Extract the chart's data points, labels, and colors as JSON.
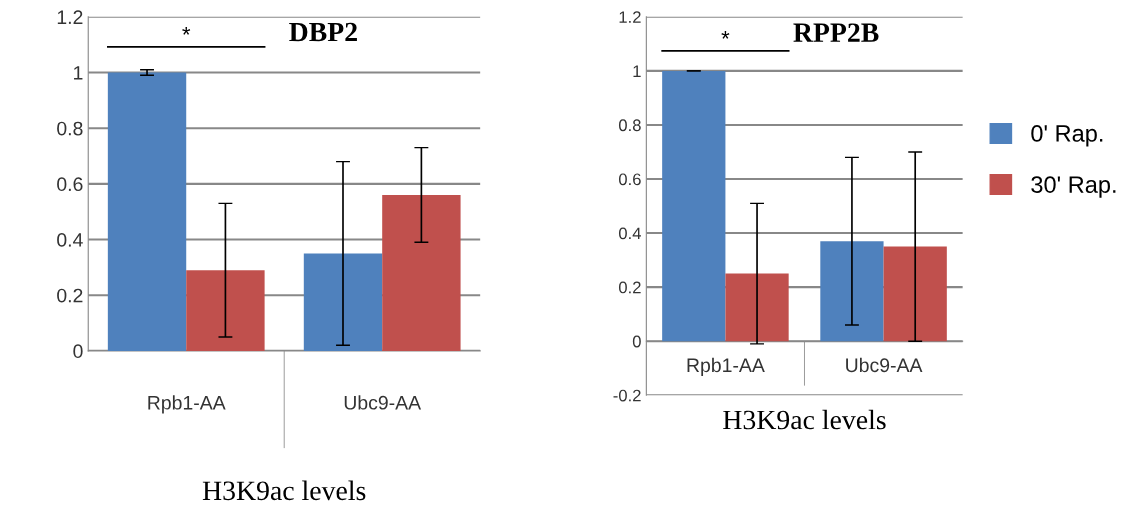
{
  "chart_data": [
    {
      "type": "bar",
      "title": "DBP2",
      "xlabel": "H3K9ac levels",
      "categories": [
        "Rpb1-AA",
        "Ubc9-AA"
      ],
      "series": [
        {
          "color": "#4f81bd",
          "values": [
            1.0,
            0.35
          ],
          "errors": [
            0.01,
            0.33
          ]
        },
        {
          "color": "#c0504d",
          "values": [
            0.29,
            0.56
          ],
          "errors": [
            0.24,
            0.17
          ]
        }
      ],
      "ylim": [
        0,
        1.2
      ],
      "yticks": [
        0,
        0.2,
        0.4,
        0.6,
        0.8,
        1,
        1.2
      ],
      "grid": "y",
      "legend": false,
      "annotations": [
        "*"
      ]
    },
    {
      "type": "bar",
      "title": "RPP2B",
      "xlabel": "H3K9ac levels",
      "categories": [
        "Rpb1-AA",
        "Ubc9-AA"
      ],
      "series": [
        {
          "name": "0' Rap.",
          "color": "#4f81bd",
          "values": [
            1.0,
            0.37
          ],
          "errors": [
            0.0,
            0.31
          ]
        },
        {
          "name": "30' Rap.",
          "color": "#c0504d",
          "values": [
            0.25,
            0.35
          ],
          "errors": [
            0.26,
            0.35
          ]
        }
      ],
      "ylim": [
        -0.2,
        1.2
      ],
      "yticks": [
        -0.2,
        0,
        0.2,
        0.4,
        0.6,
        0.8,
        1,
        1.2
      ],
      "grid": "y",
      "legend": "right",
      "annotations": [
        "*"
      ]
    }
  ]
}
